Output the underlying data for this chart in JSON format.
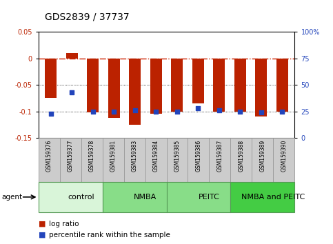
{
  "title": "GDS2839 / 37737",
  "samples": [
    "GSM159376",
    "GSM159377",
    "GSM159378",
    "GSM159381",
    "GSM159383",
    "GSM159384",
    "GSM159385",
    "GSM159386",
    "GSM159387",
    "GSM159388",
    "GSM159389",
    "GSM159390"
  ],
  "log_ratio": [
    -0.075,
    0.01,
    -0.102,
    -0.112,
    -0.125,
    -0.105,
    -0.1,
    -0.085,
    -0.1,
    -0.1,
    -0.11,
    -0.1
  ],
  "percentile_rank": [
    23,
    43,
    25,
    25,
    26,
    25,
    25,
    28,
    26,
    25,
    24,
    25
  ],
  "groups": [
    {
      "label": "control",
      "start": 0,
      "end": 3,
      "color": "#d9f5d9"
    },
    {
      "label": "NMBA",
      "start": 3,
      "end": 6,
      "color": "#88dd88"
    },
    {
      "label": "PEITC",
      "start": 6,
      "end": 9,
      "color": "#88dd88"
    },
    {
      "label": "NMBA and PEITC",
      "start": 9,
      "end": 12,
      "color": "#44cc44"
    }
  ],
  "bar_color": "#bb2200",
  "dot_color": "#2244bb",
  "ylim_left": [
    -0.15,
    0.05
  ],
  "ylim_right": [
    0,
    100
  ],
  "yticks_left": [
    -0.15,
    -0.1,
    -0.05,
    0.0,
    0.05
  ],
  "yticks_right": [
    0,
    25,
    50,
    75,
    100
  ],
  "hline_zero_color": "#cc2200",
  "hlines_dotted": [
    -0.05,
    -0.1
  ],
  "background_color": "#ffffff",
  "title_fontsize": 10,
  "tick_fontsize": 7,
  "sample_bg_color": "#cccccc",
  "sample_border_color": "#999999",
  "group_label_fontsize": 8,
  "legend_fontsize": 7.5
}
